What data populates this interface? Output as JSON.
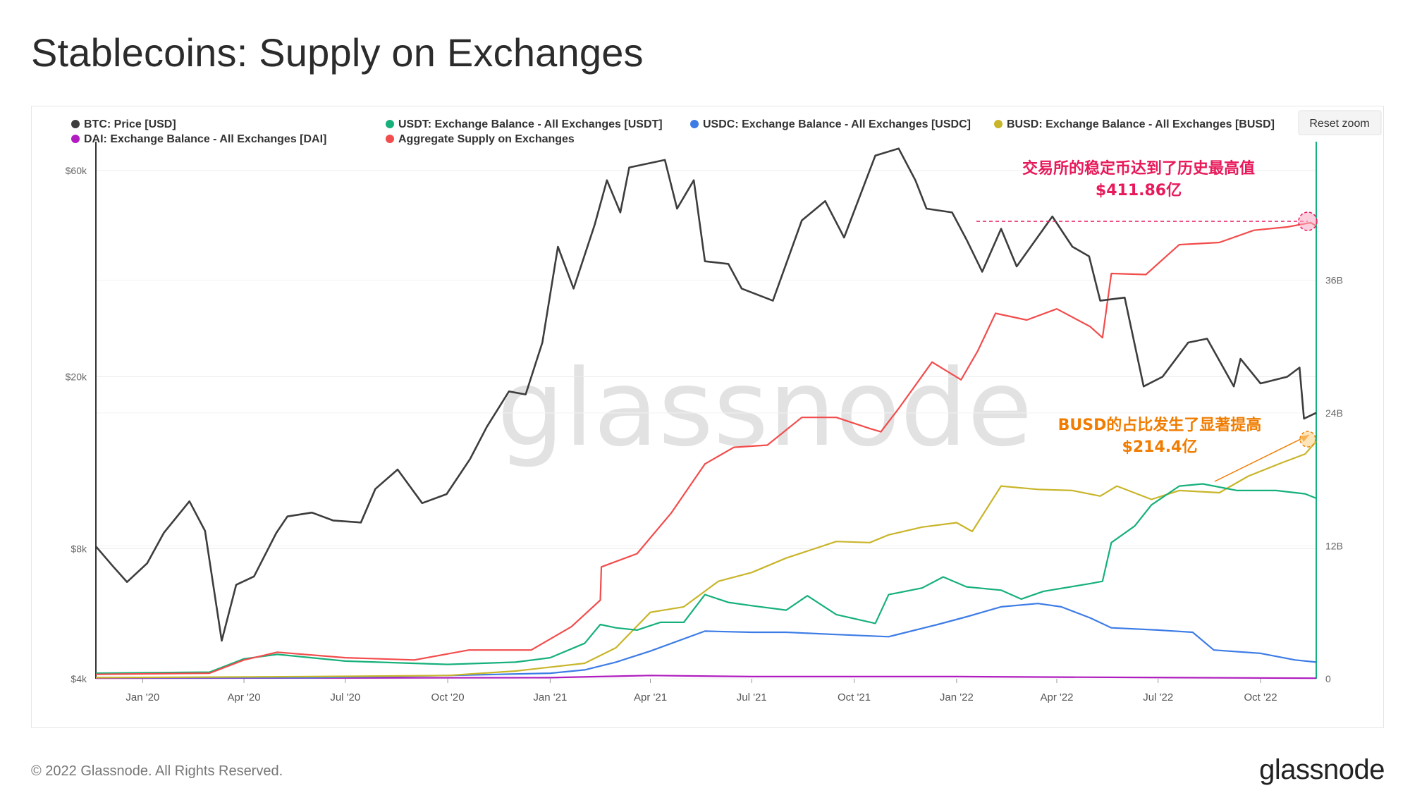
{
  "title": "Stablecoins: Supply on Exchanges",
  "footer": {
    "copyright": "© 2022 Glassnode. All Rights Reserved.",
    "logo": "glassnode"
  },
  "reset_zoom": "Reset zoom",
  "watermark": "glassnode",
  "annotations": {
    "aggregate_peak": {
      "line1": "交易所的稳定币达到了历史最高值",
      "line2": "$411.86亿",
      "color": "#e8195a",
      "value_usd": 41186000000
    },
    "busd_share": {
      "line1": "BUSD的占比发生了显著提高",
      "line2": "$214.4亿",
      "color": "#f07c00",
      "value_usd": 21440000000
    }
  },
  "chart_data": {
    "type": "line",
    "legend": [
      {
        "name": "BTC: Price [USD]",
        "color": "#3d3d3d"
      },
      {
        "name": "USDT: Exchange Balance - All Exchanges [USDT]",
        "color": "#16b07a"
      },
      {
        "name": "USDC: Exchange Balance - All Exchanges [USDC]",
        "color": "#3d7ce6"
      },
      {
        "name": "BUSD: Exchange Balance - All Exchanges [BUSD]",
        "color": "#c9b52a"
      },
      {
        "name": "DAI: Exchange Balance - All Exchanges [DAI]",
        "color": "#b01cbf"
      },
      {
        "name": "Aggregate Supply on Exchanges",
        "color": "#f24c4c"
      }
    ],
    "x_start": "2019-11-20",
    "x_end": "2022-11-20",
    "x_ticks": [
      "Jan '20",
      "Apr '20",
      "Jul '20",
      "Oct '20",
      "Jan '21",
      "Apr '21",
      "Jul '21",
      "Oct '21",
      "Jan '22",
      "Apr '22",
      "Jul '22",
      "Oct '22"
    ],
    "x_tick_dates": [
      "2020-01-01",
      "2020-04-01",
      "2020-07-01",
      "2020-10-01",
      "2021-01-01",
      "2021-04-01",
      "2021-07-01",
      "2021-10-01",
      "2022-01-01",
      "2022-04-01",
      "2022-07-01",
      "2022-10-01"
    ],
    "y_left": {
      "scale": "log",
      "ticks": [
        "$4k",
        "$8k",
        "$20k",
        "$60k"
      ],
      "tick_values": [
        4000,
        8000,
        20000,
        60000
      ],
      "range": [
        4000,
        70000
      ]
    },
    "y_right": {
      "scale": "linear",
      "ticks": [
        "0",
        "12B",
        "24B",
        "36B"
      ],
      "tick_values": [
        0,
        12,
        24,
        36
      ],
      "unit": "B",
      "range": [
        0,
        48.5
      ]
    },
    "series": [
      {
        "name": "BTC: Price [USD]",
        "color": "#3d3d3d",
        "axis": "left",
        "points": [
          [
            "2019-11-20",
            8100
          ],
          [
            "2019-12-05",
            7300
          ],
          [
            "2019-12-18",
            6700
          ],
          [
            "2020-01-05",
            7400
          ],
          [
            "2020-01-20",
            8700
          ],
          [
            "2020-02-12",
            10300
          ],
          [
            "2020-02-26",
            8800
          ],
          [
            "2020-03-12",
            4900
          ],
          [
            "2020-03-25",
            6600
          ],
          [
            "2020-04-10",
            6900
          ],
          [
            "2020-04-30",
            8700
          ],
          [
            "2020-05-10",
            9500
          ],
          [
            "2020-06-01",
            9700
          ],
          [
            "2020-06-20",
            9300
          ],
          [
            "2020-07-15",
            9200
          ],
          [
            "2020-07-28",
            11000
          ],
          [
            "2020-08-17",
            12200
          ],
          [
            "2020-09-08",
            10200
          ],
          [
            "2020-09-30",
            10700
          ],
          [
            "2020-10-21",
            12900
          ],
          [
            "2020-11-05",
            15300
          ],
          [
            "2020-11-25",
            18500
          ],
          [
            "2020-12-10",
            18200
          ],
          [
            "2020-12-25",
            24000
          ],
          [
            "2021-01-08",
            40000
          ],
          [
            "2021-01-22",
            32000
          ],
          [
            "2021-02-10",
            45000
          ],
          [
            "2021-02-21",
            57000
          ],
          [
            "2021-03-05",
            48000
          ],
          [
            "2021-03-13",
            61000
          ],
          [
            "2021-04-14",
            63500
          ],
          [
            "2021-04-25",
            49000
          ],
          [
            "2021-05-10",
            57000
          ],
          [
            "2021-05-20",
            37000
          ],
          [
            "2021-06-10",
            36500
          ],
          [
            "2021-06-22",
            32000
          ],
          [
            "2021-07-20",
            30000
          ],
          [
            "2021-08-15",
            46000
          ],
          [
            "2021-09-05",
            51000
          ],
          [
            "2021-09-22",
            42000
          ],
          [
            "2021-10-20",
            65000
          ],
          [
            "2021-11-10",
            67500
          ],
          [
            "2021-11-25",
            57000
          ],
          [
            "2021-12-05",
            49000
          ],
          [
            "2021-12-28",
            48000
          ],
          [
            "2022-01-10",
            41500
          ],
          [
            "2022-01-24",
            35000
          ],
          [
            "2022-02-10",
            44000
          ],
          [
            "2022-02-24",
            36000
          ],
          [
            "2022-03-28",
            47000
          ],
          [
            "2022-04-15",
            40000
          ],
          [
            "2022-04-30",
            38000
          ],
          [
            "2022-05-10",
            30000
          ],
          [
            "2022-06-01",
            30500
          ],
          [
            "2022-06-18",
            19000
          ],
          [
            "2022-07-05",
            20000
          ],
          [
            "2022-07-28",
            24000
          ],
          [
            "2022-08-14",
            24500
          ],
          [
            "2022-09-07",
            19000
          ],
          [
            "2022-09-13",
            22000
          ],
          [
            "2022-10-01",
            19300
          ],
          [
            "2022-10-25",
            20000
          ],
          [
            "2022-11-05",
            21000
          ],
          [
            "2022-11-09",
            16000
          ],
          [
            "2022-11-20",
            16500
          ]
        ]
      },
      {
        "name": "USDT: Exchange Balance - All Exchanges [USDT]",
        "color": "#16b07a",
        "axis": "right",
        "points": [
          [
            "2019-11-20",
            0.5
          ],
          [
            "2020-03-01",
            0.6
          ],
          [
            "2020-04-01",
            1.8
          ],
          [
            "2020-05-01",
            2.2
          ],
          [
            "2020-07-01",
            1.6
          ],
          [
            "2020-10-01",
            1.3
          ],
          [
            "2020-12-01",
            1.5
          ],
          [
            "2021-01-01",
            1.9
          ],
          [
            "2021-02-01",
            3.2
          ],
          [
            "2021-02-15",
            4.9
          ],
          [
            "2021-03-01",
            4.6
          ],
          [
            "2021-03-20",
            4.4
          ],
          [
            "2021-04-10",
            5.1
          ],
          [
            "2021-05-01",
            5.1
          ],
          [
            "2021-05-20",
            7.6
          ],
          [
            "2021-06-10",
            6.9
          ],
          [
            "2021-07-01",
            6.6
          ],
          [
            "2021-08-01",
            6.2
          ],
          [
            "2021-08-20",
            7.5
          ],
          [
            "2021-09-15",
            5.8
          ],
          [
            "2021-10-20",
            5.0
          ],
          [
            "2021-11-01",
            7.6
          ],
          [
            "2021-12-01",
            8.2
          ],
          [
            "2021-12-20",
            9.2
          ],
          [
            "2022-01-10",
            8.3
          ],
          [
            "2022-02-10",
            8.0
          ],
          [
            "2022-02-28",
            7.2
          ],
          [
            "2022-03-20",
            7.9
          ],
          [
            "2022-05-01",
            8.6
          ],
          [
            "2022-05-12",
            8.8
          ],
          [
            "2022-05-20",
            12.3
          ],
          [
            "2022-06-10",
            13.8
          ],
          [
            "2022-06-25",
            15.7
          ],
          [
            "2022-07-20",
            17.4
          ],
          [
            "2022-08-10",
            17.6
          ],
          [
            "2022-09-10",
            17.0
          ],
          [
            "2022-10-15",
            17.0
          ],
          [
            "2022-11-10",
            16.7
          ],
          [
            "2022-11-20",
            16.3
          ]
        ]
      },
      {
        "name": "USDC: Exchange Balance - All Exchanges [USDC]",
        "color": "#3d7ce6",
        "axis": "right",
        "points": [
          [
            "2019-11-20",
            0.1
          ],
          [
            "2020-06-01",
            0.1
          ],
          [
            "2020-10-01",
            0.3
          ],
          [
            "2021-01-01",
            0.5
          ],
          [
            "2021-02-01",
            0.8
          ],
          [
            "2021-03-01",
            1.5
          ],
          [
            "2021-04-01",
            2.5
          ],
          [
            "2021-05-20",
            4.3
          ],
          [
            "2021-07-01",
            4.2
          ],
          [
            "2021-08-01",
            4.2
          ],
          [
            "2021-09-15",
            4.0
          ],
          [
            "2021-11-01",
            3.8
          ],
          [
            "2021-12-15",
            4.9
          ],
          [
            "2022-01-10",
            5.6
          ],
          [
            "2022-02-10",
            6.5
          ],
          [
            "2022-03-15",
            6.8
          ],
          [
            "2022-04-05",
            6.5
          ],
          [
            "2022-05-01",
            5.5
          ],
          [
            "2022-05-20",
            4.6
          ],
          [
            "2022-07-01",
            4.4
          ],
          [
            "2022-08-01",
            4.2
          ],
          [
            "2022-08-20",
            2.6
          ],
          [
            "2022-10-01",
            2.3
          ],
          [
            "2022-11-01",
            1.7
          ],
          [
            "2022-11-20",
            1.5
          ]
        ]
      },
      {
        "name": "BUSD: Exchange Balance - All Exchanges [BUSD]",
        "color": "#c9b52a",
        "axis": "right",
        "points": [
          [
            "2019-11-20",
            0.1
          ],
          [
            "2020-06-01",
            0.2
          ],
          [
            "2020-10-01",
            0.3
          ],
          [
            "2020-12-01",
            0.7
          ],
          [
            "2021-02-01",
            1.4
          ],
          [
            "2021-03-01",
            2.8
          ],
          [
            "2021-04-01",
            6.0
          ],
          [
            "2021-05-01",
            6.5
          ],
          [
            "2021-06-01",
            8.8
          ],
          [
            "2021-07-01",
            9.6
          ],
          [
            "2021-08-01",
            10.9
          ],
          [
            "2021-09-15",
            12.4
          ],
          [
            "2021-10-15",
            12.3
          ],
          [
            "2021-11-01",
            13.0
          ],
          [
            "2021-12-01",
            13.7
          ],
          [
            "2022-01-01",
            14.1
          ],
          [
            "2022-01-15",
            13.3
          ],
          [
            "2022-02-10",
            17.4
          ],
          [
            "2022-03-15",
            17.1
          ],
          [
            "2022-04-15",
            17.0
          ],
          [
            "2022-05-10",
            16.5
          ],
          [
            "2022-05-25",
            17.4
          ],
          [
            "2022-06-25",
            16.2
          ],
          [
            "2022-07-20",
            17.0
          ],
          [
            "2022-08-25",
            16.8
          ],
          [
            "2022-09-20",
            18.3
          ],
          [
            "2022-10-20",
            19.5
          ],
          [
            "2022-11-10",
            20.3
          ],
          [
            "2022-11-20",
            21.44
          ]
        ]
      },
      {
        "name": "DAI: Exchange Balance - All Exchanges [DAI]",
        "color": "#b01cbf",
        "axis": "right",
        "points": [
          [
            "2019-11-20",
            0.05
          ],
          [
            "2021-01-01",
            0.1
          ],
          [
            "2021-04-01",
            0.3
          ],
          [
            "2021-07-01",
            0.2
          ],
          [
            "2022-01-01",
            0.2
          ],
          [
            "2022-04-01",
            0.15
          ],
          [
            "2022-11-20",
            0.05
          ]
        ]
      },
      {
        "name": "Aggregate Supply on Exchanges",
        "color": "#f24c4c",
        "axis": "right",
        "points": [
          [
            "2019-11-20",
            0.4
          ],
          [
            "2020-03-01",
            0.5
          ],
          [
            "2020-04-01",
            1.7
          ],
          [
            "2020-05-01",
            2.4
          ],
          [
            "2020-07-01",
            1.9
          ],
          [
            "2020-09-01",
            1.7
          ],
          [
            "2020-10-20",
            2.6
          ],
          [
            "2020-12-15",
            2.6
          ],
          [
            "2021-01-20",
            4.7
          ],
          [
            "2021-02-15",
            7.1
          ],
          [
            "2021-02-16",
            10.1
          ],
          [
            "2021-03-20",
            11.3
          ],
          [
            "2021-04-20",
            15.0
          ],
          [
            "2021-05-20",
            19.4
          ],
          [
            "2021-06-15",
            20.9
          ],
          [
            "2021-07-15",
            21.1
          ],
          [
            "2021-08-15",
            23.6
          ],
          [
            "2021-09-15",
            23.6
          ],
          [
            "2021-10-15",
            22.6
          ],
          [
            "2021-10-25",
            22.3
          ],
          [
            "2021-11-10",
            24.4
          ],
          [
            "2021-12-10",
            28.6
          ],
          [
            "2022-01-05",
            27.0
          ],
          [
            "2022-01-20",
            29.6
          ],
          [
            "2022-02-05",
            33.0
          ],
          [
            "2022-03-05",
            32.4
          ],
          [
            "2022-04-01",
            33.4
          ],
          [
            "2022-05-01",
            31.8
          ],
          [
            "2022-05-12",
            30.8
          ],
          [
            "2022-05-20",
            36.6
          ],
          [
            "2022-06-20",
            36.5
          ],
          [
            "2022-07-20",
            39.2
          ],
          [
            "2022-08-25",
            39.4
          ],
          [
            "2022-09-25",
            40.5
          ],
          [
            "2022-10-25",
            40.8
          ],
          [
            "2022-11-15",
            41.186
          ],
          [
            "2022-11-20",
            40.9
          ]
        ]
      }
    ]
  }
}
